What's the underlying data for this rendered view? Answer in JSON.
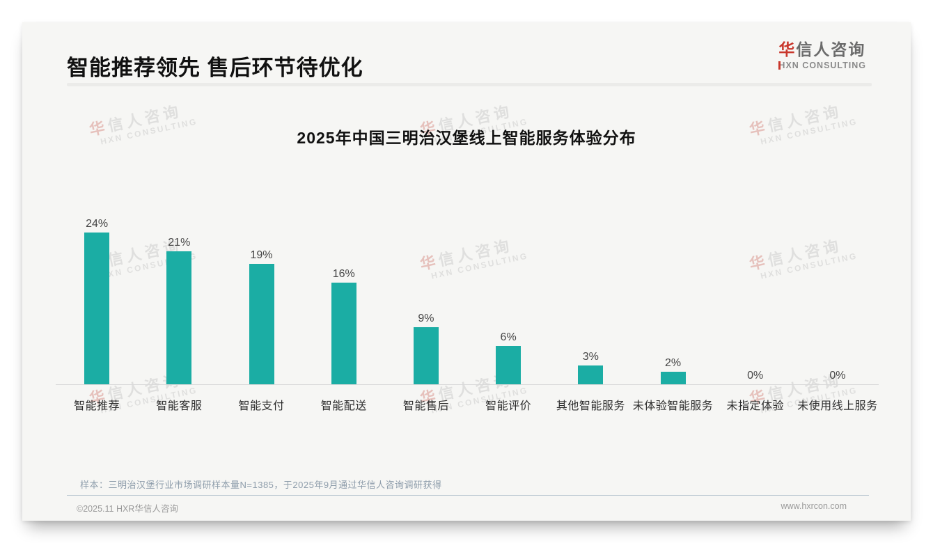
{
  "page": {
    "header": {
      "title": "智能推荐领先 售后环节待优化"
    },
    "logo": {
      "cn_accent": "华",
      "cn_rest": "信人咨询",
      "en_accent": "H",
      "en_rest": "XN CONSULTING"
    },
    "watermark": {
      "line1_accent": "华",
      "line1_rest": "信人咨询",
      "line2": "HXN CONSULTING"
    },
    "note": "样本：三明治汉堡行业市场调研样本量N=1385，于2025年9月通过华信人咨询调研获得",
    "footer": {
      "copyright": "©2025.11 HXR华信人咨询",
      "website": "www.hxrcon.com"
    }
  },
  "chart_data": {
    "type": "bar",
    "title": "2025年中国三明治汉堡线上智能服务体验分布",
    "categories": [
      "智能推荐",
      "智能客服",
      "智能支付",
      "智能配送",
      "智能售后",
      "智能评价",
      "其他智能服务",
      "未体验智能服务",
      "未指定体验",
      "未使用线上服务"
    ],
    "values": [
      24,
      21,
      19,
      16,
      9,
      6,
      3,
      2,
      0,
      0
    ],
    "value_labels": [
      "24%",
      "21%",
      "19%",
      "16%",
      "9%",
      "6%",
      "3%",
      "2%",
      "0%",
      "0%"
    ],
    "unit": "%",
    "bar_color": "#1bada4",
    "axis_color": "#d9d9d9",
    "ylim": [
      0,
      26
    ],
    "grid": false,
    "legend_position": "none"
  }
}
